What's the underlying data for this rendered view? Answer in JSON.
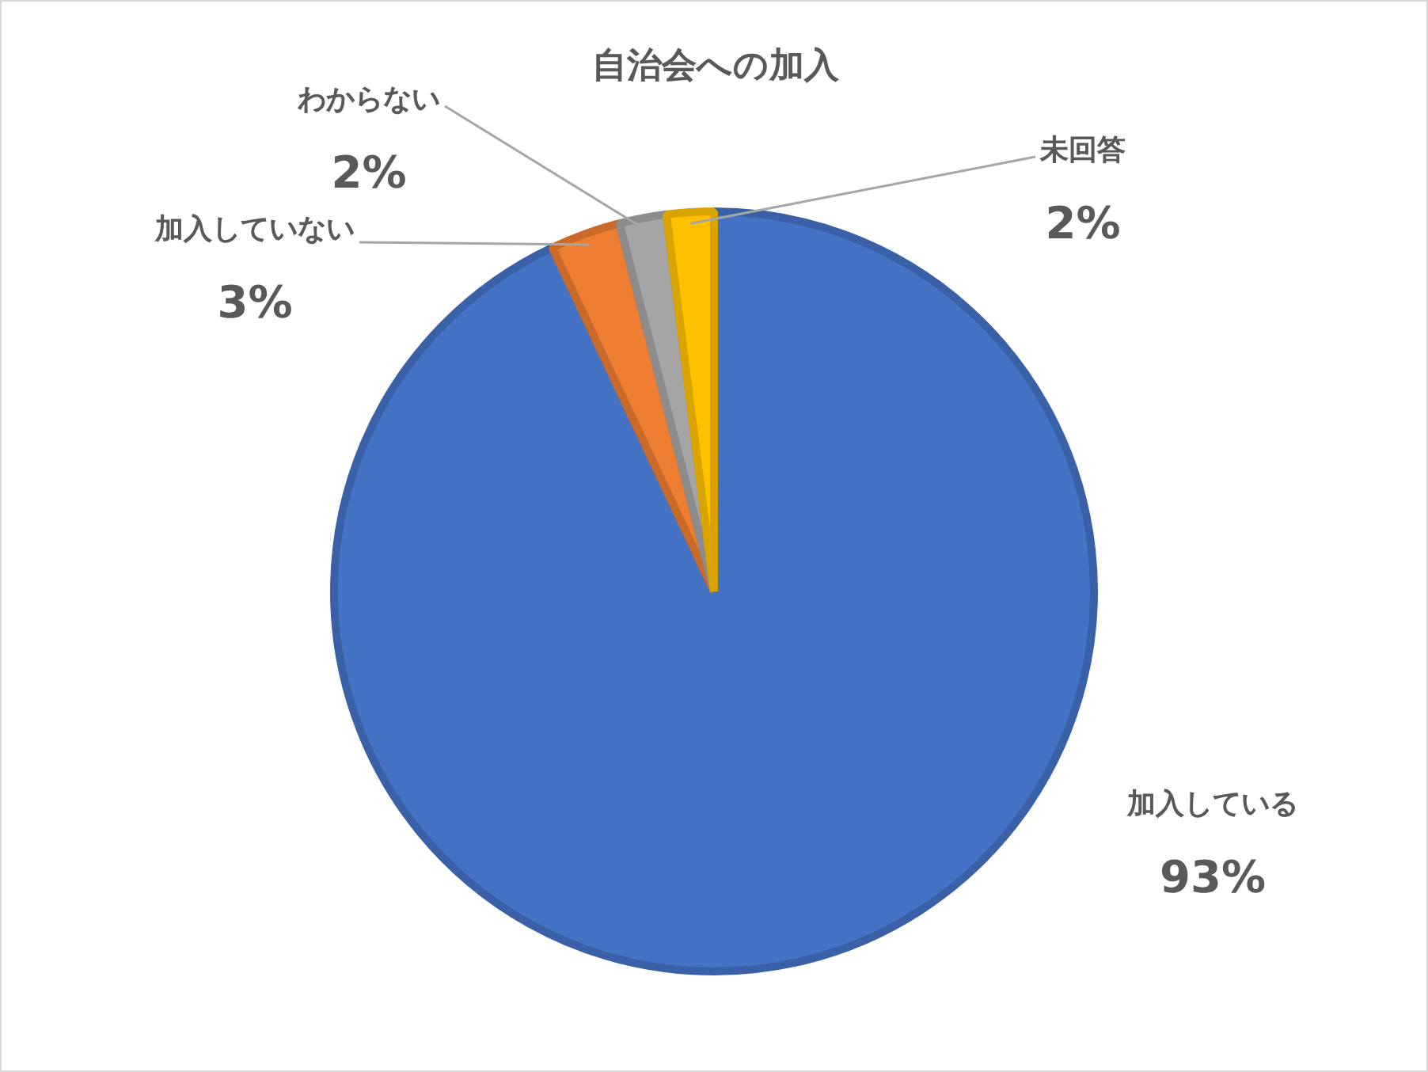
{
  "chart_data": {
    "type": "pie",
    "title": "自治会への加入",
    "categories": [
      "加入している",
      "加入していない",
      "わからない",
      "未回答"
    ],
    "values": [
      93,
      3,
      2,
      2
    ],
    "colors": [
      "#4472c4",
      "#ed7d31",
      "#a5a5a5",
      "#ffc000"
    ],
    "value_labels": [
      "93%",
      "3%",
      "2%",
      "2%"
    ],
    "legend": false
  }
}
